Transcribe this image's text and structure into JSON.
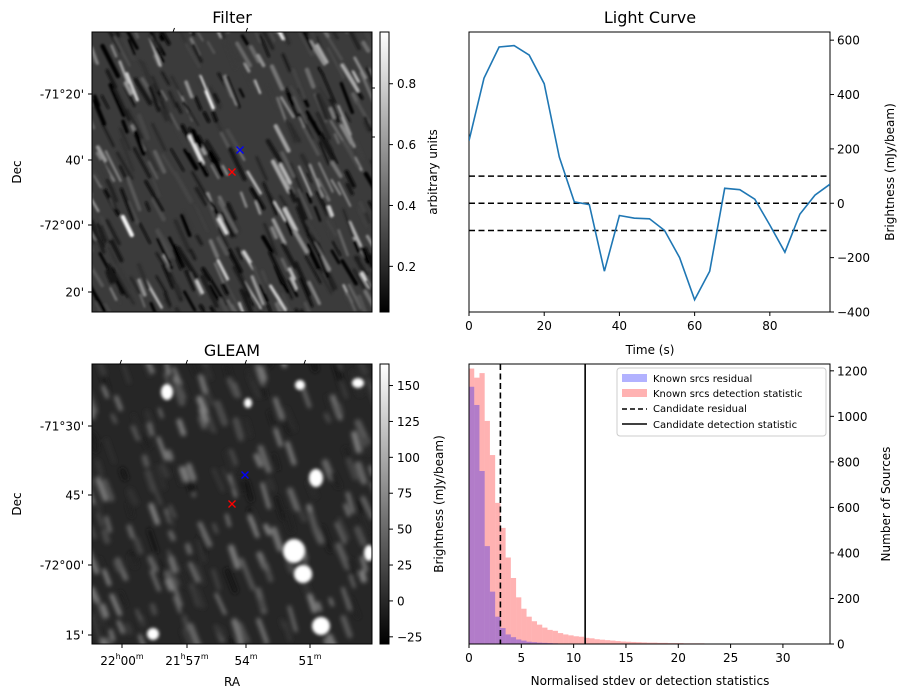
{
  "chart_data": [
    {
      "type": "image",
      "title": "Filter",
      "xlabel": "",
      "ylabel": "Dec",
      "ytick_labels": [
        "-71°20'",
        "40'",
        "-72°00'",
        "20'"
      ],
      "colorbar": {
        "label": "arbitrary units",
        "ticks": [
          0.2,
          0.4,
          0.6,
          0.8
        ],
        "tick_labels": [
          "0.2",
          "0.4",
          "0.6",
          "0.8"
        ],
        "range": [
          0.05,
          0.97
        ]
      },
      "markers": [
        {
          "color": "#0000ff",
          "symbol": "x"
        },
        {
          "color": "#ff0000",
          "symbol": "x"
        }
      ]
    },
    {
      "type": "line",
      "title": "Light Curve",
      "xlabel": "Time (s)",
      "ylabel": "Brightness (mJy/beam)",
      "xlim": [
        0,
        96
      ],
      "ylim": [
        -400,
        630
      ],
      "xtick_labels": [
        "0",
        "20",
        "40",
        "60",
        "80"
      ],
      "ytick_labels": [
        "−400",
        "−200",
        "0",
        "200",
        "400",
        "600"
      ],
      "xticks": [
        0,
        20,
        40,
        60,
        80
      ],
      "yticks": [
        -400,
        -200,
        0,
        200,
        400,
        600
      ],
      "series": [
        {
          "name": "light curve",
          "color": "#1f77b4",
          "x": [
            0,
            4,
            8,
            12,
            16,
            20,
            24,
            28,
            32,
            36,
            40,
            44,
            48,
            52,
            56,
            60,
            64,
            68,
            72,
            76,
            80,
            84,
            88,
            92,
            96
          ],
          "values": [
            230,
            460,
            575,
            580,
            545,
            440,
            170,
            5,
            -5,
            -250,
            -45,
            -55,
            -57,
            -100,
            -200,
            -355,
            -250,
            55,
            50,
            15,
            -80,
            -180,
            -40,
            30,
            70
          ]
        }
      ],
      "hlines": [
        {
          "y": 100,
          "style": "dashed",
          "color": "#000000"
        },
        {
          "y": 0,
          "style": "dashed",
          "color": "#000000"
        },
        {
          "y": -100,
          "style": "dashed",
          "color": "#000000"
        }
      ]
    },
    {
      "type": "image",
      "title": "GLEAM",
      "xlabel": "RA",
      "ylabel": "Dec",
      "ytick_labels": [
        "-71°30'",
        "45'",
        "-72°00'",
        "15'"
      ],
      "xtick_labels": [
        {
          "main": "22",
          "sup1": "h",
          "mid": "00",
          "sup2": "m"
        },
        {
          "main": "21",
          "sup1": "h",
          "mid": "57",
          "sup2": "m"
        },
        {
          "main": "54",
          "sup1": "m",
          "mid": "",
          "sup2": ""
        },
        {
          "main": "51",
          "sup1": "m",
          "mid": "",
          "sup2": ""
        }
      ],
      "colorbar": {
        "label": "Brightness (mJy/beam)",
        "ticks": [
          -25,
          0,
          25,
          50,
          75,
          100,
          125,
          150
        ],
        "tick_labels": [
          "−25",
          "0",
          "25",
          "50",
          "75",
          "100",
          "125",
          "150"
        ],
        "range": [
          -30,
          165
        ]
      },
      "markers": [
        {
          "color": "#0000ff",
          "symbol": "x"
        },
        {
          "color": "#ff0000",
          "symbol": "x"
        }
      ]
    },
    {
      "type": "histogram",
      "title": "",
      "xlabel": "Normalised stdev or detection statistics",
      "ylabel": "Number of Sources",
      "xlim": [
        0,
        34.5
      ],
      "ylim": [
        0,
        1230
      ],
      "xticks": [
        0,
        5,
        10,
        15,
        20,
        25,
        30
      ],
      "yticks": [
        0,
        200,
        400,
        600,
        800,
        1000,
        1200
      ],
      "xtick_labels": [
        "0",
        "5",
        "10",
        "15",
        "20",
        "25",
        "30"
      ],
      "ytick_labels": [
        "0",
        "200",
        "400",
        "600",
        "800",
        "1000",
        "1200"
      ],
      "bin_width": 0.5,
      "series": [
        {
          "name": "Known srcs residual",
          "color": "#0000ff",
          "alpha": 0.3,
          "values": [
            1130,
            1050,
            760,
            430,
            230,
            120,
            70,
            42,
            30,
            20,
            15,
            10,
            8,
            6,
            5,
            4,
            3,
            2,
            2,
            1
          ]
        },
        {
          "name": "Known srcs detection statistic",
          "color": "#ff0000",
          "alpha": 0.3,
          "values": [
            1210,
            1170,
            1190,
            980,
            830,
            620,
            510,
            380,
            290,
            205,
            155,
            120,
            100,
            85,
            72,
            62,
            58,
            48,
            42,
            38,
            34,
            32,
            27,
            25,
            21,
            19,
            17,
            15,
            13,
            11,
            10,
            9,
            8,
            7,
            6,
            6,
            5,
            5,
            4,
            4,
            4,
            3,
            3,
            3,
            3,
            2,
            2,
            2,
            2,
            2,
            2,
            2,
            1,
            1,
            1,
            1,
            1,
            1,
            1,
            1,
            1,
            1,
            1,
            1,
            1,
            1,
            1,
            1
          ]
        }
      ],
      "vlines": [
        {
          "name": "Candidate residual",
          "x": 3.0,
          "style": "dashed",
          "color": "#000000"
        },
        {
          "name": "Candidate detection statistic",
          "x": 11.1,
          "style": "solid",
          "color": "#000000"
        }
      ],
      "legend": {
        "placement": "top-right"
      }
    }
  ]
}
